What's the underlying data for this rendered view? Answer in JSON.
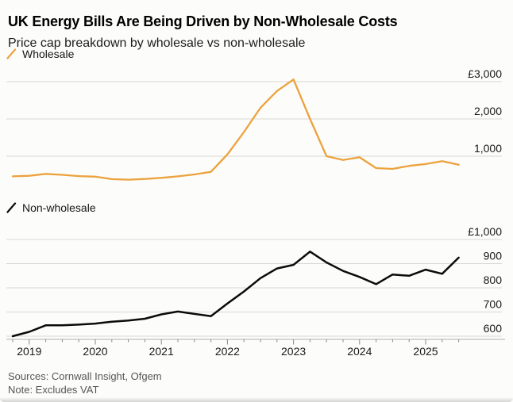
{
  "header": {
    "title": "UK Energy Bills Are Being Driven by Non-Wholesale Costs",
    "subtitle": "Price cap breakdown by wholesale vs non-wholesale"
  },
  "legends": {
    "wholesale": "Wholesale",
    "non_wholesale": "Non-wholesale"
  },
  "colors": {
    "wholesale_line": "#ECA23D",
    "non_wholesale_line": "#0B0B0B",
    "gridline": "#D9D7D3",
    "axis_line": "#B4B1AD",
    "tick_mark": "#8A8884",
    "label_text": "#1A1A1A",
    "muted_text": "#565656"
  },
  "footer": {
    "sources": "Sources: Cornwall Insight, Ofgem",
    "note": "Note: Excludes VAT"
  },
  "chart_data": [
    {
      "type": "line",
      "name": "Wholesale",
      "currency": "GBP",
      "x": [
        "2018 Q4",
        "2019 Q1",
        "2019 Q2",
        "2019 Q3",
        "2019 Q4",
        "2020 Q1",
        "2020 Q2",
        "2020 Q3",
        "2020 Q4",
        "2021 Q1",
        "2021 Q2",
        "2021 Q3",
        "2021 Q4",
        "2022 Q1",
        "2022 Q2",
        "2022 Q3",
        "2022 Q4",
        "2023 Q1",
        "2023 Q2",
        "2023 Q3",
        "2023 Q4",
        "2024 Q1",
        "2024 Q2",
        "2024 Q3",
        "2024 Q4",
        "2025 Q1",
        "2025 Q2",
        "2025 Q3"
      ],
      "values": [
        460,
        475,
        525,
        500,
        465,
        450,
        385,
        370,
        390,
        420,
        460,
        510,
        580,
        1050,
        1650,
        2300,
        2750,
        3060,
        2000,
        1000,
        900,
        970,
        680,
        660,
        740,
        790,
        865,
        770
      ],
      "ylim": [
        0,
        3450
      ],
      "yticks": [
        {
          "value": 1000,
          "label": "1,000"
        },
        {
          "value": 2000,
          "label": "2,000"
        },
        {
          "value": 3000,
          "label": "£3,000"
        }
      ],
      "grid": true,
      "legend_position": "top-left"
    },
    {
      "type": "line",
      "name": "Non-wholesale",
      "currency": "GBP",
      "x": [
        "2018 Q4",
        "2019 Q1",
        "2019 Q2",
        "2019 Q3",
        "2019 Q4",
        "2020 Q1",
        "2020 Q2",
        "2020 Q3",
        "2020 Q4",
        "2021 Q1",
        "2021 Q2",
        "2021 Q3",
        "2021 Q4",
        "2022 Q1",
        "2022 Q2",
        "2022 Q3",
        "2022 Q4",
        "2023 Q1",
        "2023 Q2",
        "2023 Q3",
        "2023 Q4",
        "2024 Q1",
        "2024 Q2",
        "2024 Q3",
        "2024 Q4",
        "2025 Q1",
        "2025 Q2",
        "2025 Q3"
      ],
      "values": [
        600,
        618,
        645,
        645,
        648,
        652,
        660,
        665,
        672,
        690,
        702,
        692,
        683,
        735,
        785,
        840,
        880,
        895,
        950,
        905,
        870,
        845,
        815,
        855,
        850,
        875,
        858,
        925
      ],
      "ylim": [
        580,
        1040
      ],
      "yticks": [
        {
          "value": 600,
          "label": "600"
        },
        {
          "value": 700,
          "label": "700"
        },
        {
          "value": 800,
          "label": "800"
        },
        {
          "value": 900,
          "label": "900"
        },
        {
          "value": 1000,
          "label": "£1,000"
        }
      ],
      "grid": true,
      "legend_position": "top-left",
      "x_year_labels": [
        {
          "label": "2019",
          "index": 1
        },
        {
          "label": "2020",
          "index": 5
        },
        {
          "label": "2021",
          "index": 9
        },
        {
          "label": "2022",
          "index": 13
        },
        {
          "label": "2023",
          "index": 17
        },
        {
          "label": "2024",
          "index": 21
        },
        {
          "label": "2025",
          "index": 25
        }
      ]
    }
  ]
}
